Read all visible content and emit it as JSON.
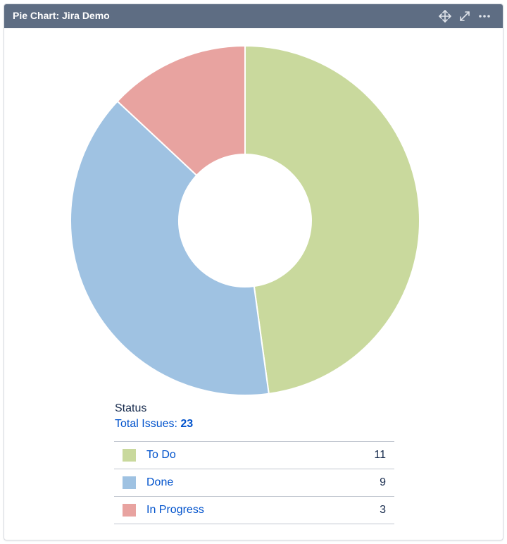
{
  "gadget": {
    "title": "Pie Chart: Jira Demo",
    "icons": [
      "move-icon",
      "expand-icon",
      "more-icon"
    ]
  },
  "legend": {
    "status_label": "Status",
    "total_label": "Total Issues:",
    "total_count": "23"
  },
  "chart_data": {
    "type": "pie",
    "donut": true,
    "categories": [
      "To Do",
      "Done",
      "In Progress"
    ],
    "values": [
      11,
      9,
      3
    ],
    "colors": [
      "#c9d99d",
      "#9fc2e2",
      "#e8a3a0"
    ],
    "title": "",
    "legend_position": "bottom"
  },
  "legend_rows": [
    {
      "label": "To Do",
      "count": "11",
      "color": "#c9d99d"
    },
    {
      "label": "Done",
      "count": "9",
      "color": "#9fc2e2"
    },
    {
      "label": "In Progress",
      "count": "3",
      "color": "#e8a3a0"
    }
  ]
}
